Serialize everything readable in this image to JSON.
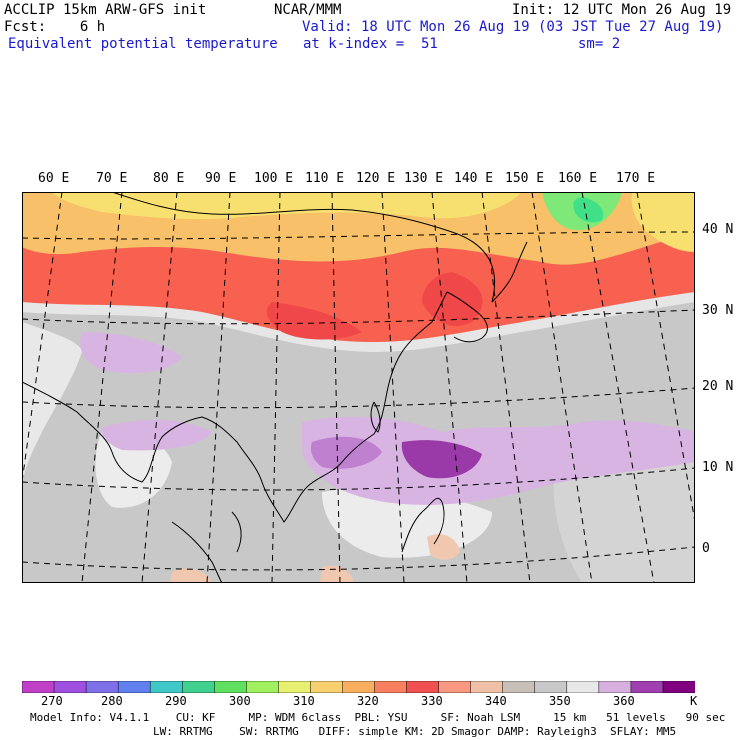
{
  "header": {
    "model": "ACCLIP 15km ARW-GFS init",
    "fcst": "Fcst:    6 h",
    "field": "Equivalent potential temperature",
    "org": "NCAR/MMM",
    "valid": "Valid: 18 UTC Mon 26 Aug 19 (03 JST Tue 27 Aug 19)",
    "level": "at k-index =  51",
    "init": "Init: 12 UTC Mon 26 Aug 19",
    "smooth": "sm= 2"
  },
  "map": {
    "lon_labels": [
      "60 E",
      "70 E",
      "80 E",
      "90 E",
      "100 E",
      "110 E",
      "120 E",
      "130 E",
      "140 E",
      "150 E",
      "160 E",
      "170 E"
    ],
    "lat_labels": [
      "40 N",
      "30 N",
      "20 N",
      "10 N",
      "0"
    ]
  },
  "colorbar": {
    "colors": [
      "#c040c8",
      "#a050e0",
      "#8070e8",
      "#6080f0",
      "#40c8c8",
      "#40d090",
      "#60e060",
      "#a0f060",
      "#e8f070",
      "#f8d070",
      "#f8b060",
      "#f88060",
      "#f05050",
      "#f89880",
      "#f0c0a8",
      "#c8c0b8",
      "#c8c8c8",
      "#e8e8e8",
      "#d8b0e0",
      "#a040b0",
      "#800080"
    ],
    "labels": [
      "270",
      "280",
      "290",
      "300",
      "310",
      "320",
      "330",
      "340",
      "350",
      "360"
    ],
    "unit": "K"
  },
  "footer": {
    "line1": "Model Info: V4.1.1    CU: KF     MP: WDM 6class  PBL: YSU     SF: Noah LSM     15 km   51 levels   90 sec",
    "line2": "LW: RRTMG    SW: RRTMG   DIFF: simple KM: 2D Smagor DAMP: Rayleigh3  SFLAY: MM5"
  }
}
